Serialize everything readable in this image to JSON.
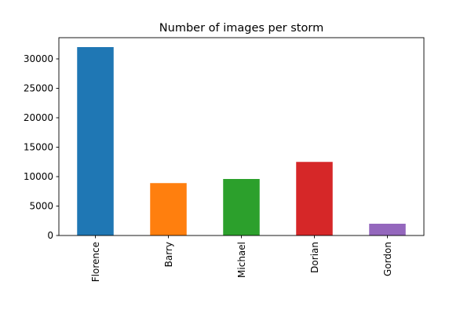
{
  "chart_data": {
    "type": "bar",
    "title": "Number of images per storm",
    "xlabel": "",
    "ylabel": "",
    "categories": [
      "Florence",
      "Barry",
      "Michael",
      "Dorian",
      "Gordon"
    ],
    "values": [
      32000,
      8900,
      9600,
      12500,
      2000
    ],
    "colors": [
      "#1f77b4",
      "#ff7f0e",
      "#2ca02c",
      "#d62728",
      "#9467bd"
    ],
    "ylim": [
      0,
      33600
    ],
    "yticks": [
      0,
      5000,
      10000,
      15000,
      20000,
      25000,
      30000
    ],
    "x_tick_rotation": "vertical",
    "grid": false,
    "legend": "none"
  }
}
